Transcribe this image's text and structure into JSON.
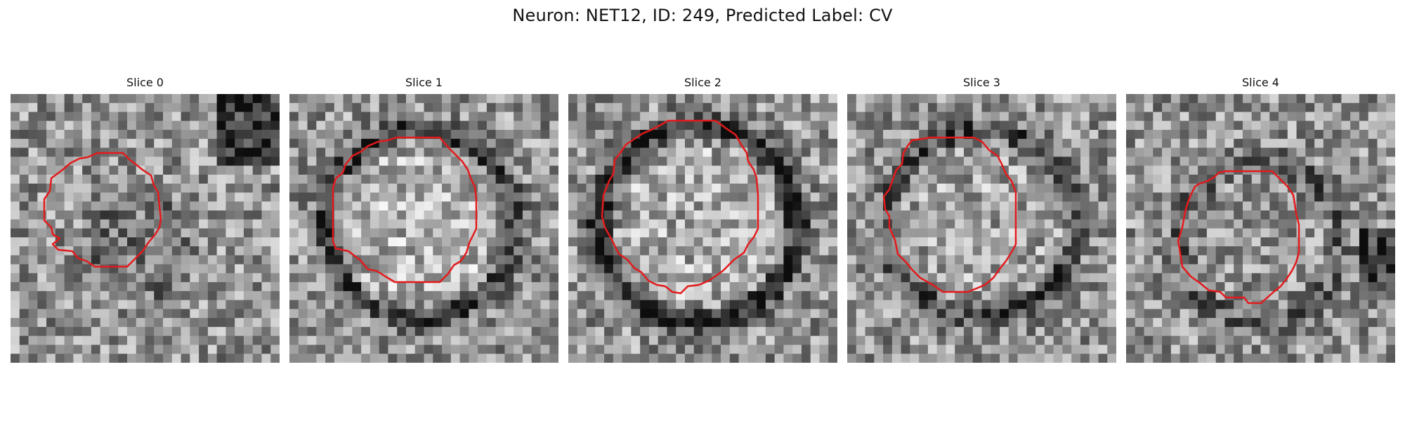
{
  "figure": {
    "title": "Neuron: NET12, ID: 249, Predicted Label: CV"
  },
  "panels": [
    {
      "title": "Slice 0",
      "contour_color": "#e31a1c"
    },
    {
      "title": "Slice 1",
      "contour_color": "#e31a1c"
    },
    {
      "title": "Slice 2",
      "contour_color": "#e31a1c"
    },
    {
      "title": "Slice 3",
      "contour_color": "#e31a1c"
    },
    {
      "title": "Slice 4",
      "contour_color": "#e31a1c"
    }
  ]
}
